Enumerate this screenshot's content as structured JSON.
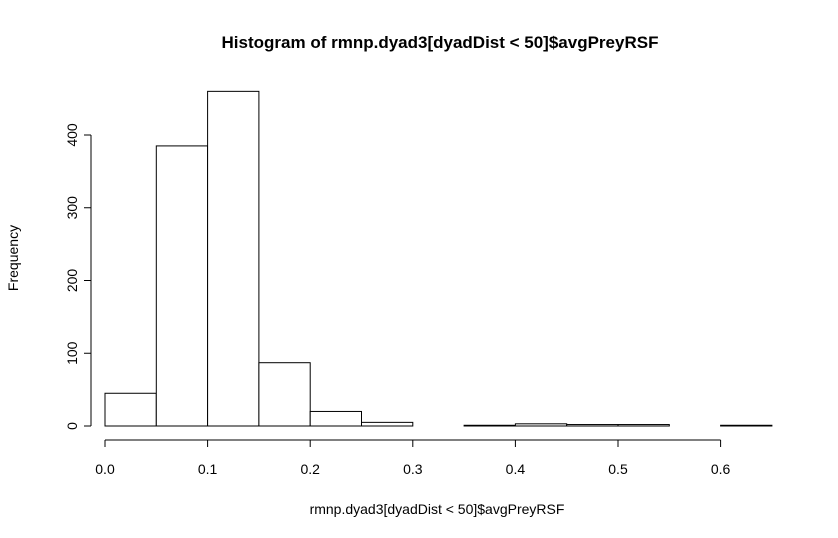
{
  "chart_data": {
    "type": "bar",
    "title": "Histogram of rmnp.dyad3[dyadDist < 50]$avgPreyRSF",
    "xlabel": "rmnp.dyad3[dyadDist < 50]$avgPreyRSF",
    "ylabel": "Frequency",
    "bin_width": 0.05,
    "bins": [
      {
        "x0": 0.0,
        "x1": 0.05,
        "count": 45
      },
      {
        "x0": 0.05,
        "x1": 0.1,
        "count": 385
      },
      {
        "x0": 0.1,
        "x1": 0.15,
        "count": 460
      },
      {
        "x0": 0.15,
        "x1": 0.2,
        "count": 87
      },
      {
        "x0": 0.2,
        "x1": 0.25,
        "count": 20
      },
      {
        "x0": 0.25,
        "x1": 0.3,
        "count": 5
      },
      {
        "x0": 0.3,
        "x1": 0.35,
        "count": 0
      },
      {
        "x0": 0.35,
        "x1": 0.4,
        "count": 1
      },
      {
        "x0": 0.4,
        "x1": 0.45,
        "count": 3
      },
      {
        "x0": 0.45,
        "x1": 0.5,
        "count": 2
      },
      {
        "x0": 0.5,
        "x1": 0.55,
        "count": 2
      },
      {
        "x0": 0.55,
        "x1": 0.6,
        "count": 0
      },
      {
        "x0": 0.6,
        "x1": 0.65,
        "count": 1
      }
    ],
    "xlim": [
      0,
      0.65
    ],
    "ylim": [
      0,
      460
    ],
    "x_ticks": [
      0.0,
      0.1,
      0.2,
      0.3,
      0.4,
      0.5,
      0.6
    ],
    "x_tick_labels": [
      "0.0",
      "0.1",
      "0.2",
      "0.3",
      "0.4",
      "0.5",
      "0.6"
    ],
    "y_ticks": [
      0,
      100,
      200,
      300,
      400
    ],
    "y_tick_labels": [
      "0",
      "100",
      "200",
      "300",
      "400"
    ],
    "grid": false,
    "legend": "none"
  }
}
